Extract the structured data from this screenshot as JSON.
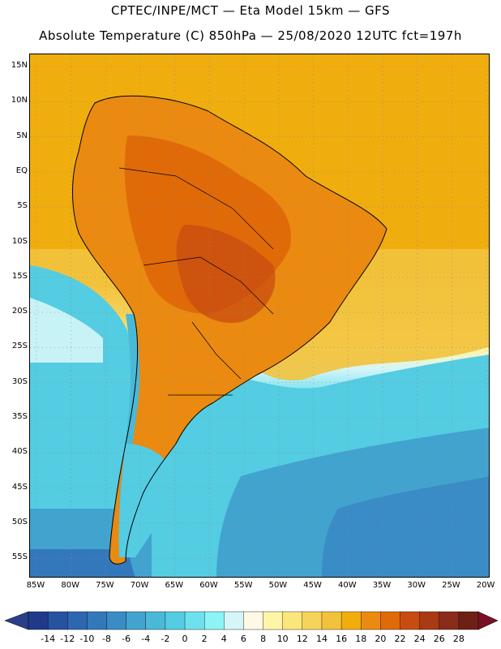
{
  "header": {
    "title_line1": "CPTEC/INPE/MCT —  Eta Model 15km — GFS",
    "title_line2": "Absolute Temperature (C) 850hPa — 25/08/2020 12UTC fct=197h"
  },
  "latitude_labels": [
    "15N",
    "10N",
    "5N",
    "EQ",
    "5S",
    "10S",
    "15S",
    "20S",
    "25S",
    "30S",
    "35S",
    "40S",
    "45S",
    "50S",
    "55S"
  ],
  "longitude_labels": [
    "85W",
    "80W",
    "75W",
    "70W",
    "65W",
    "60W",
    "55W",
    "50W",
    "45W",
    "40W",
    "35W",
    "30W",
    "25W",
    "20W"
  ],
  "colorbar": {
    "labels": [
      "-14",
      "-12",
      "-10",
      "-8",
      "-6",
      "-4",
      "-2",
      "0",
      "2",
      "4",
      "6",
      "8",
      "10",
      "12",
      "14",
      "16",
      "18",
      "20",
      "22",
      "24",
      "26",
      "28"
    ],
    "colors": [
      "#1f3a8a",
      "#2652a0",
      "#2e66b0",
      "#3478bc",
      "#3a8cc6",
      "#42a3cf",
      "#4ab9d8",
      "#54cce2",
      "#6fe0ee",
      "#8cf4f6",
      "#d4f6f8",
      "#fff8e4",
      "#fef5a6",
      "#fbe67c",
      "#f6d35a",
      "#f2c23c",
      "#f0ad0c",
      "#ea8a10",
      "#e06a08",
      "#c84c10",
      "#a83a14",
      "#8a2c1a",
      "#6e2014"
    ],
    "under_color": "#2a3f8a",
    "over_color": "#7a1026"
  }
}
